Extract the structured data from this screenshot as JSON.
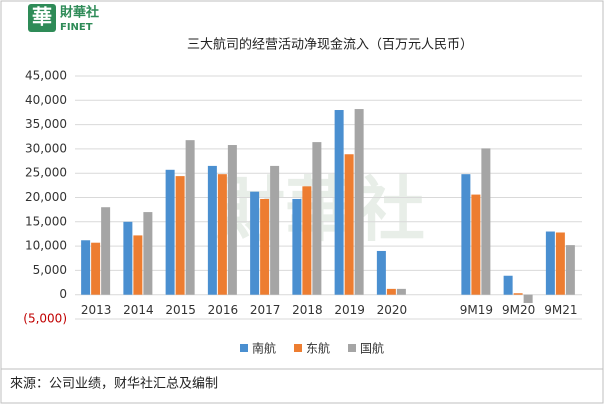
{
  "header": {
    "logo_char": "華",
    "brand": "財華社",
    "brand_en": "FINET"
  },
  "chart_data": {
    "type": "bar",
    "title": "三大航司的经营活动净现金流入（百万元人民币）",
    "categories": [
      "2013",
      "2014",
      "2015",
      "2016",
      "2017",
      "2018",
      "2019",
      "2020",
      null,
      "9M19",
      "9M20",
      "9M21"
    ],
    "series": [
      {
        "name": "南航",
        "color": "#4a8fd0",
        "values": [
          11200,
          15000,
          25700,
          26500,
          21200,
          19700,
          38000,
          9000,
          null,
          24800,
          3900,
          13000
        ]
      },
      {
        "name": "东航",
        "color": "#ed7d31",
        "values": [
          10700,
          12200,
          24400,
          24800,
          19700,
          22300,
          28900,
          1200,
          null,
          20600,
          300,
          12800
        ]
      },
      {
        "name": "国航",
        "color": "#a5a5a5",
        "values": [
          18000,
          17000,
          31800,
          30800,
          26500,
          31400,
          38200,
          1200,
          null,
          30100,
          -1700,
          10200
        ]
      }
    ],
    "ylim": [
      -5000,
      45000
    ],
    "yticks": [
      {
        "value": -5000,
        "label": "(5,000)"
      },
      0,
      {
        "value": 5000,
        "label": "5,000"
      },
      {
        "value": 10000,
        "label": "10,000"
      },
      {
        "value": 15000,
        "label": "15,000"
      },
      {
        "value": 20000,
        "label": "20,000"
      },
      {
        "value": 25000,
        "label": "25,000"
      },
      {
        "value": 30000,
        "label": "30,000"
      },
      {
        "value": 35000,
        "label": "35,000"
      },
      {
        "value": 40000,
        "label": "40,000"
      },
      {
        "value": 45000,
        "label": "45,000"
      }
    ],
    "negative_tick_color": "#c00000",
    "grid": true,
    "legend": "bottom"
  },
  "source": "來源：公司业绩，财华社汇总及编制"
}
